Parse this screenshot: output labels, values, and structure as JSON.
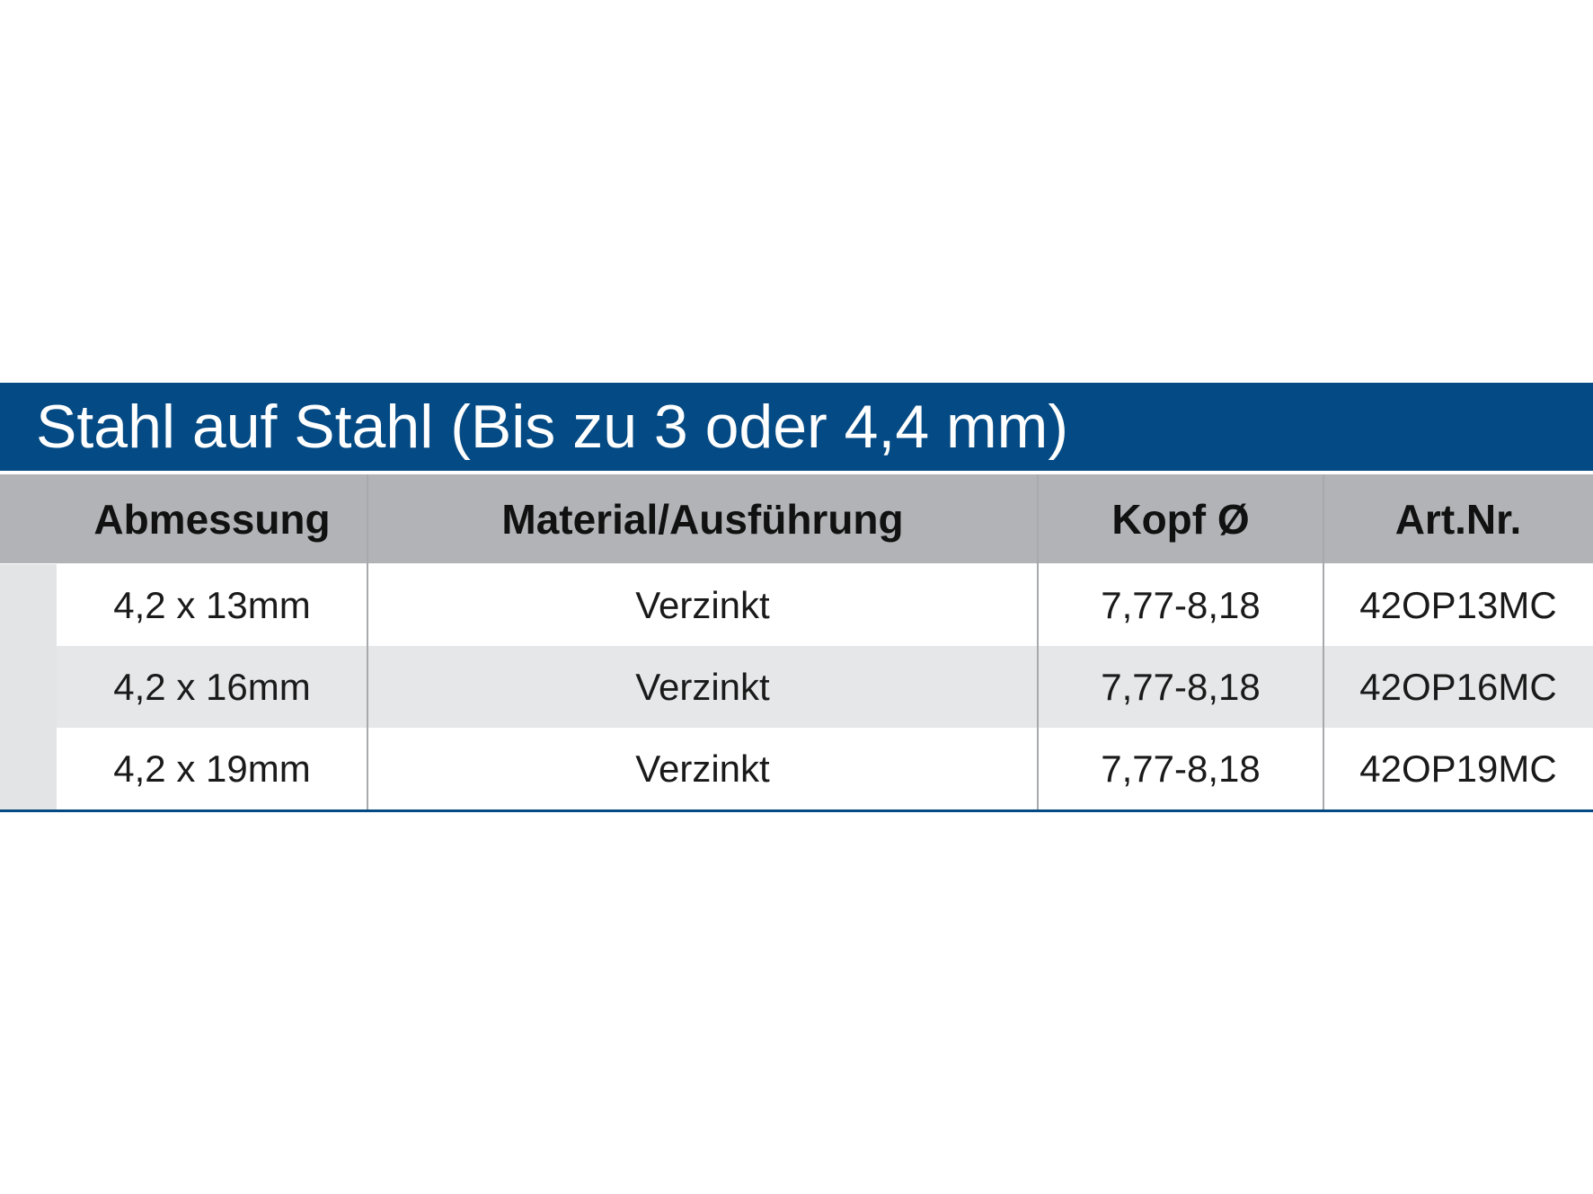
{
  "title": "Stahl auf Stahl (Bis zu 3 oder 4,4 mm)",
  "table": {
    "headers": [
      "Abmessung",
      "Material/Ausführung",
      "Kopf Ø",
      "Art.Nr."
    ],
    "rows": [
      [
        "4,2 x 13mm",
        "Verzinkt",
        "7,77-8,18",
        "42OP13MC"
      ],
      [
        "4,2 x 16mm",
        "Verzinkt",
        "7,77-8,18",
        "42OP16MC"
      ],
      [
        "4,2 x 19mm",
        "Verzinkt",
        "7,77-8,18",
        "42OP19MC"
      ]
    ]
  }
}
